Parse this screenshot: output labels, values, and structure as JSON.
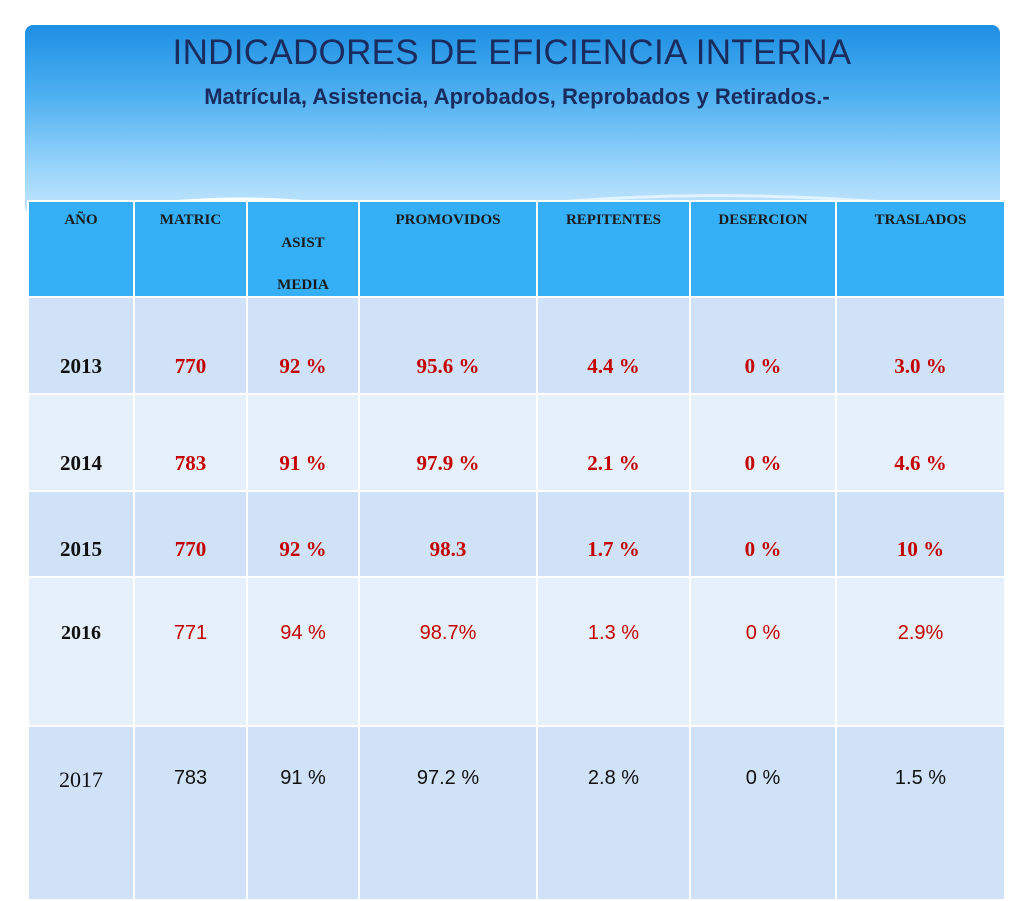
{
  "title": "INDICADORES DE EFICIENCIA INTERNA",
  "subtitle": "Matrícula, Asistencia, Aprobados, Reprobados y Retirados.-",
  "headers": [
    "AÑO",
    "MATRIC",
    "ASIST",
    "MEDIA",
    "PROMOVIDOS",
    "REPITENTES",
    "DESERCION",
    "TRASLADOS"
  ],
  "rows": [
    [
      "2013",
      "770",
      "92 %",
      "95.6 %",
      "4.4 %",
      "0 %",
      "3.0 %"
    ],
    [
      "2014",
      "783",
      "91  %",
      "97.9 %",
      "2.1  %",
      "0 %",
      "4.6  %"
    ],
    [
      "2015",
      "770",
      "92 %",
      "98.3",
      "1.7 %",
      "0 %",
      "10 %"
    ],
    [
      "2016",
      "771",
      "94 %",
      "98.7%",
      "1.3 %",
      "0 %",
      "2.9%"
    ],
    [
      "2017",
      "783",
      "91 %",
      "97.2 %",
      "2.8 %",
      "0 %",
      "1.5 %"
    ]
  ],
  "colors": {
    "banner_top": "#1e8fe3",
    "header_bg": "#35b0f7",
    "row_dark": "#cfe2f7",
    "row_light": "#e6f0fb",
    "value_red": "#c40000",
    "title_navy": "#1a2b5e"
  }
}
